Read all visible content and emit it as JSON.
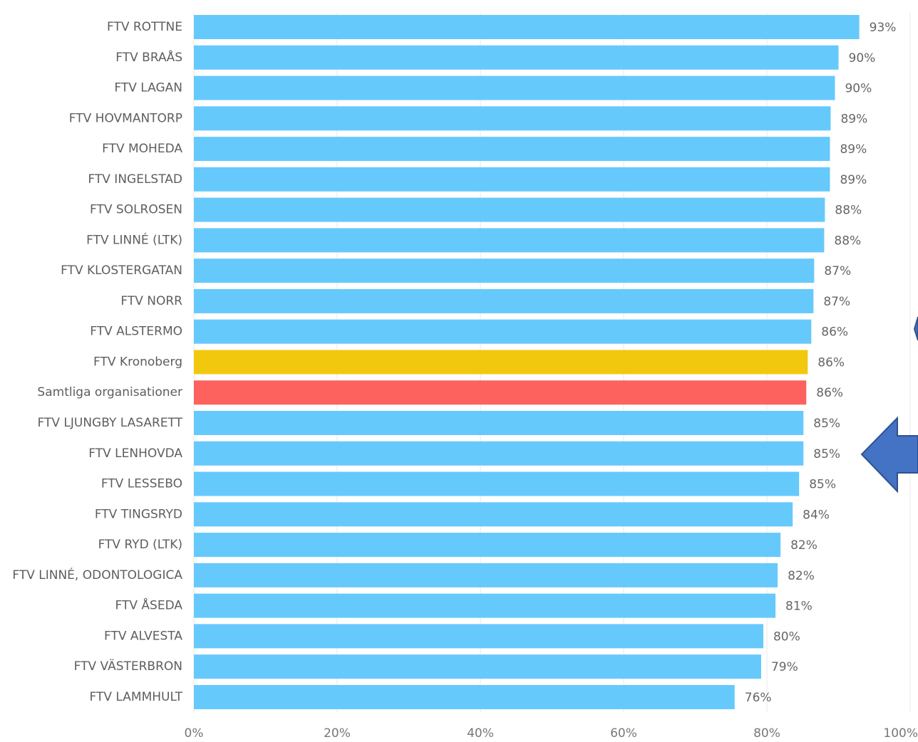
{
  "chart_data": {
    "type": "barh",
    "categories": [
      "FTV ROTTNE",
      "FTV BRAÅS",
      "FTV LAGAN",
      "FTV HOVMANTORP",
      "FTV MOHEDA",
      "FTV INGELSTAD",
      "FTV SOLROSEN",
      "FTV LINNÉ (LTK)",
      "FTV KLOSTERGATAN",
      "FTV NORR",
      "FTV ALSTERMO",
      "FTV Kronoberg",
      "Samtliga organisationer",
      "FTV LJUNGBY LASARETT",
      "FTV LENHOVDA",
      "FTV LESSEBO",
      "FTV TINGSRYD",
      "FTV RYD (LTK)",
      "FTV LINNÉ, ODONTOLOGICA",
      "FTV ÅSEDA",
      "FTV ALVESTA",
      "FTV VÄSTERBRON",
      "FTV LAMMHULT"
    ],
    "values": [
      92.9,
      90.0,
      89.5,
      88.9,
      88.8,
      88.8,
      88.1,
      88.0,
      86.6,
      86.5,
      86.2,
      85.7,
      85.5,
      85.1,
      85.1,
      84.5,
      83.6,
      81.9,
      81.5,
      81.2,
      79.5,
      79.2,
      75.5
    ],
    "value_labels": [
      "93%",
      "90%",
      "90%",
      "89%",
      "89%",
      "89%",
      "88%",
      "88%",
      "87%",
      "87%",
      "86%",
      "86%",
      "86%",
      "85%",
      "85%",
      "85%",
      "84%",
      "82%",
      "82%",
      "81%",
      "80%",
      "79%",
      "76%"
    ],
    "colors": [
      "#66c9fc",
      "#66c9fc",
      "#66c9fc",
      "#66c9fc",
      "#66c9fc",
      "#66c9fc",
      "#66c9fc",
      "#66c9fc",
      "#66c9fc",
      "#66c9fc",
      "#66c9fc",
      "#f2c80f",
      "#fd625e",
      "#66c9fc",
      "#66c9fc",
      "#66c9fc",
      "#66c9fc",
      "#66c9fc",
      "#66c9fc",
      "#66c9fc",
      "#66c9fc",
      "#66c9fc",
      "#66c9fc"
    ],
    "xlim": [
      0,
      100
    ],
    "xticks": [
      {
        "value": 0,
        "label": "0%"
      },
      {
        "value": 20,
        "label": "20%"
      },
      {
        "value": 40,
        "label": "40%"
      },
      {
        "value": 60,
        "label": "60%"
      },
      {
        "value": 80,
        "label": "80%"
      },
      {
        "value": 100,
        "label": "100%"
      }
    ],
    "grid": true
  }
}
